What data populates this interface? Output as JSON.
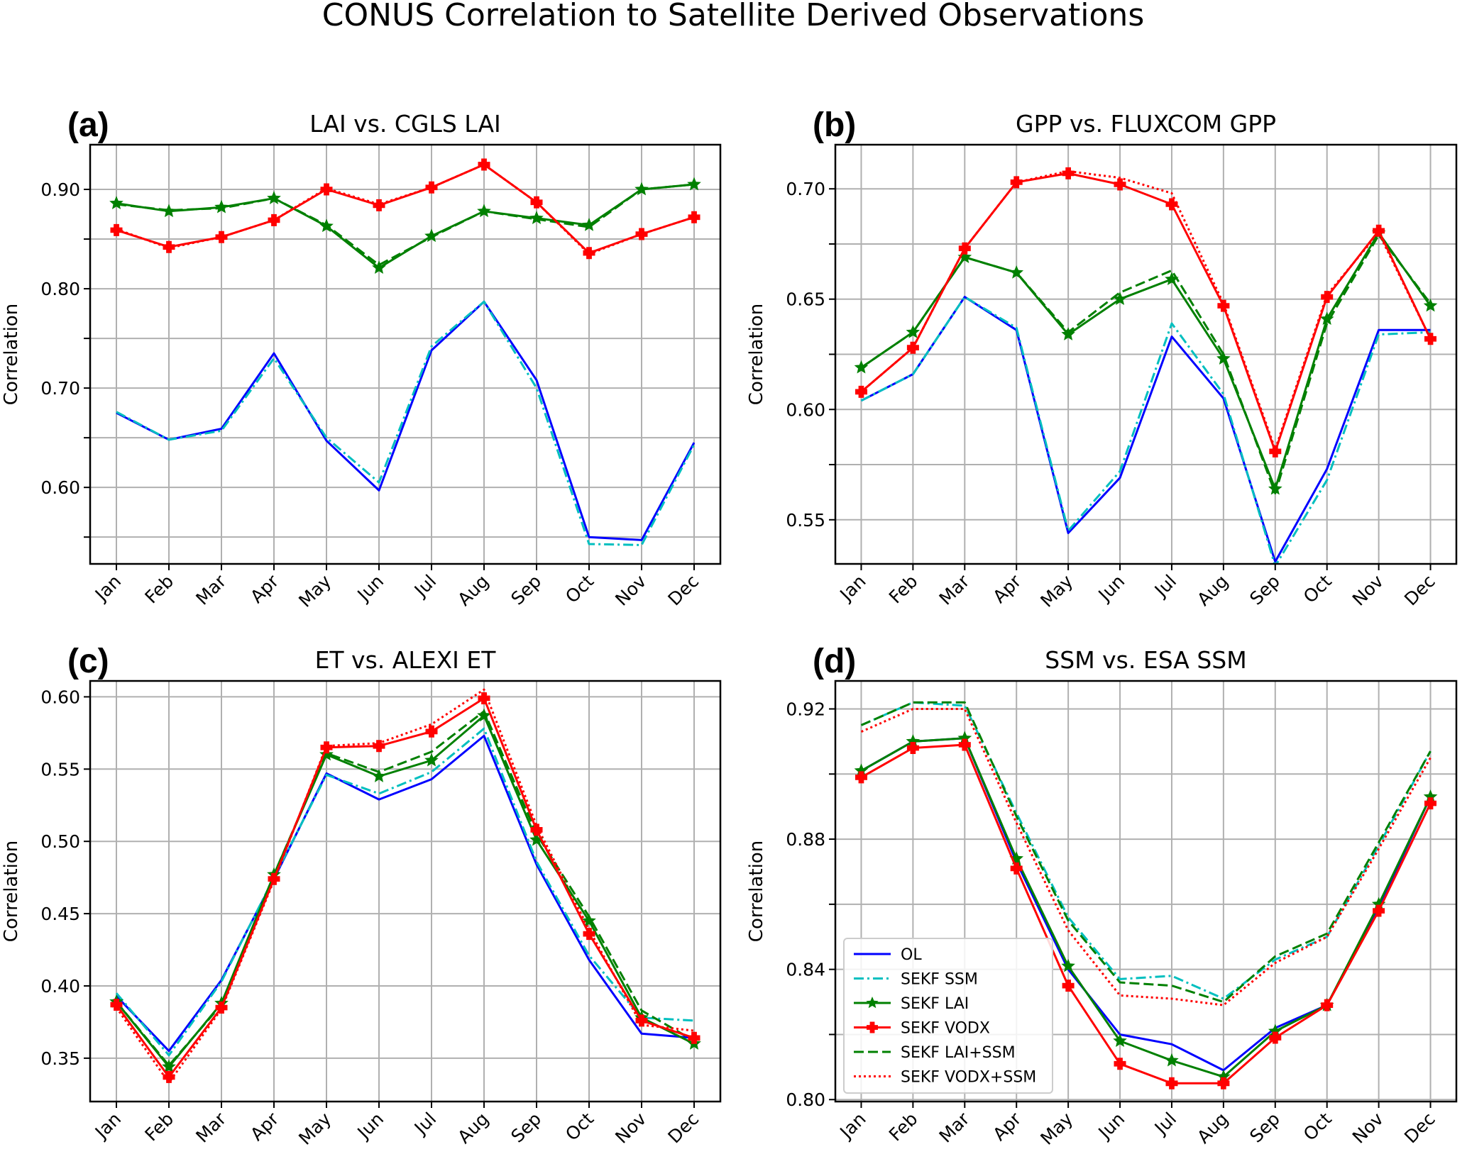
{
  "figure_title": "CONUS Correlation to Satellite Derived Observations",
  "legend_position": "lower-left of panel (d)",
  "series_styles": [
    {
      "name": "OL",
      "color": "#0000ff",
      "dash": "solid",
      "marker": "none"
    },
    {
      "name": "SEKF SSM",
      "color": "#00bfbf",
      "dash": "dashdot",
      "marker": "none"
    },
    {
      "name": "SEKF LAI",
      "color": "#008000",
      "dash": "solid",
      "marker": "star"
    },
    {
      "name": "SEKF VODX",
      "color": "#ff0000",
      "dash": "solid",
      "marker": "plus"
    },
    {
      "name": "SEKF LAI+SSM",
      "color": "#008000",
      "dash": "dashed",
      "marker": "none"
    },
    {
      "name": "SEKF VODX+SSM",
      "color": "#ff0000",
      "dash": "dotted",
      "marker": "none"
    }
  ],
  "chart_data": [
    {
      "type": "line",
      "panel_label": "(a)",
      "title": "LAI vs. CGLS LAI",
      "xlabel": "",
      "ylabel": "Correlation",
      "categories": [
        "Jan",
        "Feb",
        "Mar",
        "Apr",
        "May",
        "Jun",
        "Jul",
        "Aug",
        "Sep",
        "Oct",
        "Nov",
        "Dec"
      ],
      "ylim": [
        0.523,
        0.945
      ],
      "yticks": [
        0.55,
        0.6,
        0.65,
        0.7,
        0.75,
        0.8,
        0.85,
        0.9
      ],
      "ytick_labels": [
        "",
        "0.60",
        "",
        "0.70",
        "",
        "0.80",
        "",
        "0.90"
      ],
      "grid": true,
      "series": [
        {
          "name": "OL",
          "values": [
            0.675,
            0.648,
            0.659,
            0.735,
            0.647,
            0.597,
            0.738,
            0.787,
            0.708,
            0.55,
            0.547,
            0.645
          ]
        },
        {
          "name": "SEKF SSM",
          "values": [
            0.676,
            0.648,
            0.657,
            0.73,
            0.65,
            0.605,
            0.742,
            0.787,
            0.7,
            0.543,
            0.542,
            0.643
          ]
        },
        {
          "name": "SEKF LAI",
          "values": [
            0.886,
            0.878,
            0.882,
            0.891,
            0.863,
            0.821,
            0.853,
            0.878,
            0.871,
            0.864,
            0.9,
            0.905
          ]
        },
        {
          "name": "SEKF VODX",
          "values": [
            0.859,
            0.842,
            0.852,
            0.869,
            0.9,
            0.884,
            0.902,
            0.925,
            0.887,
            0.836,
            0.855,
            0.872
          ]
        },
        {
          "name": "SEKF LAI+SSM",
          "values": [
            0.885,
            0.879,
            0.881,
            0.891,
            0.864,
            0.824,
            0.852,
            0.878,
            0.87,
            0.862,
            0.9,
            0.905
          ]
        },
        {
          "name": "SEKF VODX+SSM",
          "values": [
            0.86,
            0.841,
            0.852,
            0.869,
            0.901,
            0.885,
            0.902,
            0.925,
            0.887,
            0.835,
            0.855,
            0.872
          ]
        }
      ]
    },
    {
      "type": "line",
      "panel_label": "(b)",
      "title": "GPP vs. FLUXCOM GPP",
      "xlabel": "",
      "ylabel": "Correlation",
      "categories": [
        "Jan",
        "Feb",
        "Mar",
        "Apr",
        "May",
        "Jun",
        "Jul",
        "Aug",
        "Sep",
        "Oct",
        "Nov",
        "Dec"
      ],
      "ylim": [
        0.53,
        0.72
      ],
      "yticks": [
        0.55,
        0.575,
        0.6,
        0.625,
        0.65,
        0.675,
        0.7
      ],
      "ytick_labels": [
        "0.55",
        "",
        "0.60",
        "",
        "0.65",
        "",
        "0.70"
      ],
      "grid": true,
      "series": [
        {
          "name": "OL",
          "values": [
            0.604,
            0.616,
            0.651,
            0.636,
            0.544,
            0.569,
            0.633,
            0.605,
            0.531,
            0.573,
            0.636,
            0.636
          ]
        },
        {
          "name": "SEKF SSM",
          "values": [
            0.604,
            0.616,
            0.651,
            0.637,
            0.545,
            0.572,
            0.639,
            0.607,
            0.529,
            0.568,
            0.634,
            0.635
          ]
        },
        {
          "name": "SEKF LAI",
          "values": [
            0.619,
            0.635,
            0.669,
            0.662,
            0.634,
            0.65,
            0.659,
            0.623,
            0.564,
            0.641,
            0.68,
            0.647
          ]
        },
        {
          "name": "SEKF VODX",
          "values": [
            0.608,
            0.628,
            0.673,
            0.703,
            0.707,
            0.702,
            0.693,
            0.647,
            0.581,
            0.651,
            0.681,
            0.632
          ]
        },
        {
          "name": "SEKF LAI+SSM",
          "values": [
            0.619,
            0.635,
            0.669,
            0.662,
            0.635,
            0.653,
            0.663,
            0.625,
            0.562,
            0.639,
            0.679,
            0.648
          ]
        },
        {
          "name": "SEKF VODX+SSM",
          "values": [
            0.608,
            0.628,
            0.673,
            0.703,
            0.708,
            0.705,
            0.698,
            0.648,
            0.582,
            0.652,
            0.68,
            0.632
          ]
        }
      ]
    },
    {
      "type": "line",
      "panel_label": "(c)",
      "title": "ET vs. ALEXI ET",
      "xlabel": "",
      "ylabel": "Correlation",
      "categories": [
        "Jan",
        "Feb",
        "Mar",
        "Apr",
        "May",
        "Jun",
        "Jul",
        "Aug",
        "Sep",
        "Oct",
        "Nov",
        "Dec"
      ],
      "ylim": [
        0.32,
        0.611
      ],
      "yticks": [
        0.35,
        0.4,
        0.45,
        0.5,
        0.55,
        0.6
      ],
      "ytick_labels": [
        "0.35",
        "0.40",
        "0.45",
        "0.50",
        "0.55",
        "0.60"
      ],
      "grid": true,
      "series": [
        {
          "name": "OL",
          "values": [
            0.393,
            0.355,
            0.404,
            0.474,
            0.547,
            0.529,
            0.543,
            0.573,
            0.484,
            0.418,
            0.367,
            0.364
          ]
        },
        {
          "name": "SEKF SSM",
          "values": [
            0.395,
            0.352,
            0.403,
            0.475,
            0.546,
            0.533,
            0.548,
            0.578,
            0.486,
            0.421,
            0.378,
            0.376
          ]
        },
        {
          "name": "SEKF LAI",
          "values": [
            0.389,
            0.344,
            0.388,
            0.477,
            0.56,
            0.545,
            0.556,
            0.587,
            0.501,
            0.445,
            0.378,
            0.36
          ]
        },
        {
          "name": "SEKF VODX",
          "values": [
            0.387,
            0.337,
            0.385,
            0.474,
            0.565,
            0.566,
            0.576,
            0.599,
            0.508,
            0.436,
            0.376,
            0.364
          ]
        },
        {
          "name": "SEKF LAI+SSM",
          "values": [
            0.389,
            0.345,
            0.387,
            0.477,
            0.561,
            0.548,
            0.562,
            0.59,
            0.505,
            0.448,
            0.383,
            0.362
          ]
        },
        {
          "name": "SEKF VODX+SSM",
          "values": [
            0.385,
            0.333,
            0.384,
            0.473,
            0.566,
            0.568,
            0.581,
            0.605,
            0.511,
            0.439,
            0.373,
            0.369
          ]
        }
      ]
    },
    {
      "type": "line",
      "panel_label": "(d)",
      "title": "SSM vs. ESA SSM",
      "xlabel": "",
      "ylabel": "Correlation",
      "categories": [
        "Jan",
        "Feb",
        "Mar",
        "Apr",
        "May",
        "Jun",
        "Jul",
        "Aug",
        "Sep",
        "Oct",
        "Nov",
        "Dec"
      ],
      "ylim": [
        0.7994,
        0.9286
      ],
      "yticks": [
        0.8,
        0.82,
        0.84,
        0.86,
        0.88,
        0.9,
        0.92
      ],
      "ytick_labels": [
        "0.80",
        "",
        "0.84",
        "",
        "0.88",
        "",
        "0.92"
      ],
      "grid": true,
      "series": [
        {
          "name": "OL",
          "values": [
            0.901,
            0.91,
            0.911,
            0.873,
            0.84,
            0.82,
            0.817,
            0.809,
            0.822,
            0.829,
            0.859,
            0.893
          ]
        },
        {
          "name": "SEKF SSM",
          "values": [
            0.915,
            0.922,
            0.921,
            0.888,
            0.856,
            0.837,
            0.838,
            0.831,
            0.843,
            0.85,
            0.878,
            0.907
          ]
        },
        {
          "name": "SEKF LAI",
          "values": [
            0.901,
            0.91,
            0.911,
            0.874,
            0.841,
            0.818,
            0.812,
            0.807,
            0.821,
            0.829,
            0.86,
            0.893
          ]
        },
        {
          "name": "SEKF VODX",
          "values": [
            0.899,
            0.908,
            0.909,
            0.871,
            0.835,
            0.811,
            0.805,
            0.805,
            0.819,
            0.829,
            0.858,
            0.891
          ]
        },
        {
          "name": "SEKF LAI+SSM",
          "values": [
            0.915,
            0.922,
            0.922,
            0.887,
            0.855,
            0.836,
            0.835,
            0.83,
            0.844,
            0.851,
            0.879,
            0.907
          ]
        },
        {
          "name": "SEKF VODX+SSM",
          "values": [
            0.913,
            0.92,
            0.92,
            0.885,
            0.852,
            0.832,
            0.831,
            0.829,
            0.842,
            0.85,
            0.877,
            0.905
          ]
        }
      ]
    }
  ]
}
